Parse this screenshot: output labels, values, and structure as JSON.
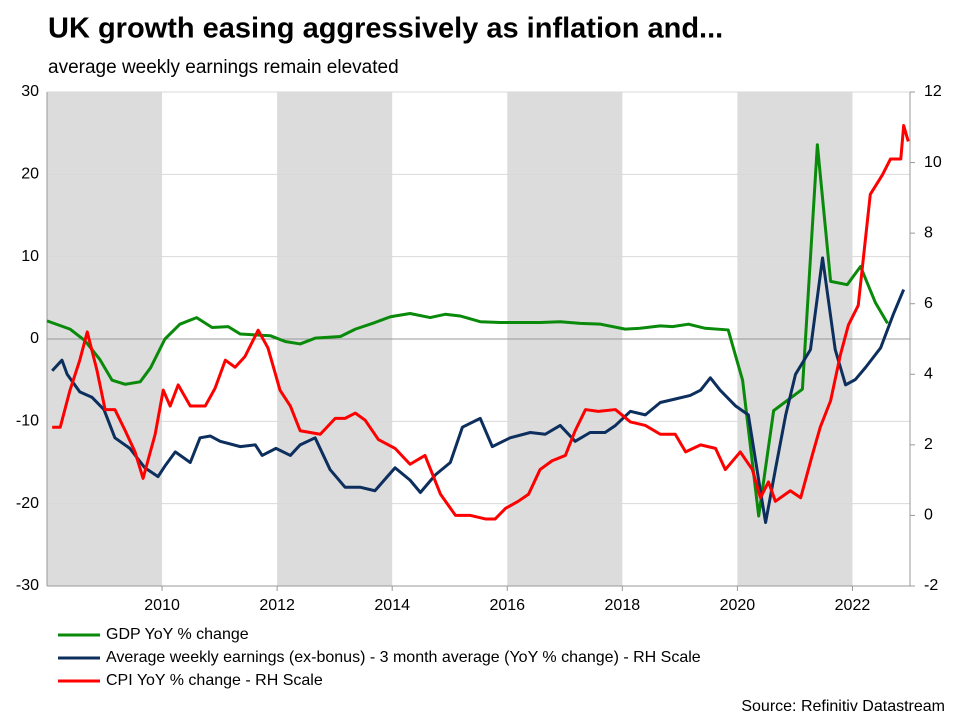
{
  "chart_data": {
    "type": "line",
    "title": "UK growth easing aggressively as inflation and...",
    "subtitle": "average weekly earnings remain elevated",
    "source": "Source: Refinitiv Datastream",
    "xlim": [
      2008,
      2023
    ],
    "xticks": [
      2010,
      2012,
      2014,
      2016,
      2018,
      2020,
      2022
    ],
    "ylim": [
      -30,
      30
    ],
    "yticks": [
      -30,
      -20,
      -10,
      0,
      10,
      20,
      30
    ],
    "y2lim": [
      -2,
      12
    ],
    "y2ticks": [
      -2,
      0,
      2,
      4,
      6,
      8,
      10,
      12
    ],
    "grid": true,
    "shaded_periods": [
      [
        2008,
        2010
      ],
      [
        2012,
        2014
      ],
      [
        2016,
        2018
      ],
      [
        2020,
        2022
      ]
    ],
    "shade_color": "#dcdcdc",
    "series": [
      {
        "name": "GDP YoY % change",
        "color": "#0a8a0a",
        "x": [
          2008.0,
          2008.4,
          2008.66,
          2008.92,
          2009.13,
          2009.36,
          2009.62,
          2009.8,
          2010.05,
          2010.31,
          2010.6,
          2010.87,
          2011.15,
          2011.36,
          2011.88,
          2012.14,
          2012.4,
          2012.66,
          2013.1,
          2013.36,
          2013.7,
          2013.97,
          2014.31,
          2014.66,
          2014.92,
          2015.18,
          2015.53,
          2015.88,
          2016.57,
          2016.92,
          2017.27,
          2017.62,
          2018.05,
          2018.31,
          2018.66,
          2018.87,
          2019.15,
          2019.44,
          2019.84,
          2020.09,
          2020.37,
          2020.63,
          2021.13,
          2021.39,
          2021.62,
          2021.91,
          2022.14,
          2022.4,
          2022.61
        ],
        "values": [
          2.2,
          1.2,
          -0.2,
          -2.5,
          -5,
          -5.5,
          -5.2,
          -3.5,
          0,
          1.8,
          2.6,
          1.4,
          1.5,
          0.6,
          0.4,
          -0.3,
          -0.6,
          0.1,
          0.3,
          1.2,
          2.0,
          2.7,
          3.1,
          2.6,
          3.0,
          2.8,
          2.1,
          2.0,
          2.0,
          2.1,
          1.9,
          1.8,
          1.2,
          1.3,
          1.6,
          1.5,
          1.8,
          1.3,
          1.1,
          -5,
          -21.5,
          -8.7,
          -6.1,
          23.6,
          7.0,
          6.6,
          8.8,
          4.4,
          1.9
        ]
      },
      {
        "name": "Average weekly earnings (ex-bonus) - 3 month average (YoY % change) - RH Scale",
        "color": "#0d2f5e",
        "axis": "y2",
        "x": [
          2008.09,
          2008.26,
          2008.35,
          2008.57,
          2008.78,
          2008.99,
          2009.18,
          2009.44,
          2009.7,
          2009.93,
          2010.05,
          2010.23,
          2010.49,
          2010.66,
          2010.84,
          2011.01,
          2011.36,
          2011.62,
          2011.74,
          2011.98,
          2012.23,
          2012.4,
          2012.66,
          2012.92,
          2013.18,
          2013.44,
          2013.7,
          2014.05,
          2014.31,
          2014.49,
          2014.75,
          2015.01,
          2015.22,
          2015.53,
          2015.74,
          2016.05,
          2016.4,
          2016.66,
          2016.92,
          2017.18,
          2017.44,
          2017.7,
          2017.88,
          2018.14,
          2018.4,
          2018.66,
          2018.92,
          2019.18,
          2019.36,
          2019.53,
          2019.7,
          2019.97,
          2020.19,
          2020.37,
          2020.49,
          2020.66,
          2020.84,
          2021.01,
          2021.27,
          2021.48,
          2021.7,
          2021.88,
          2022.05,
          2022.23,
          2022.49,
          2022.71,
          2022.89
        ],
        "values": [
          4.1,
          4.4,
          4.0,
          3.5,
          3.35,
          3.0,
          2.2,
          1.9,
          1.35,
          1.1,
          1.4,
          1.8,
          1.5,
          2.2,
          2.25,
          2.1,
          1.95,
          2.0,
          1.7,
          1.9,
          1.7,
          2.0,
          2.2,
          1.3,
          0.8,
          0.8,
          0.7,
          1.35,
          1.0,
          0.65,
          1.15,
          1.5,
          2.5,
          2.75,
          1.95,
          2.2,
          2.35,
          2.3,
          2.55,
          2.1,
          2.35,
          2.35,
          2.55,
          2.95,
          2.85,
          3.2,
          3.3,
          3.4,
          3.55,
          3.9,
          3.55,
          3.1,
          2.85,
          1.0,
          -0.2,
          1.3,
          2.85,
          4.0,
          4.7,
          7.3,
          4.7,
          3.7,
          3.85,
          4.2,
          4.75,
          5.7,
          6.4
        ]
      },
      {
        "name": "CPI YoY % change - RH Scale",
        "color": "#ff0000",
        "axis": "y2",
        "x": [
          2008.09,
          2008.23,
          2008.4,
          2008.57,
          2008.7,
          2008.87,
          2009.01,
          2009.18,
          2009.36,
          2009.53,
          2009.67,
          2009.88,
          2010.02,
          2010.14,
          2010.28,
          2010.49,
          2010.75,
          2010.92,
          2011.1,
          2011.27,
          2011.44,
          2011.67,
          2011.84,
          2012.05,
          2012.23,
          2012.4,
          2012.75,
          2013.01,
          2013.18,
          2013.36,
          2013.53,
          2013.76,
          2014.05,
          2014.31,
          2014.57,
          2014.84,
          2015.1,
          2015.36,
          2015.62,
          2015.79,
          2015.97,
          2016.19,
          2016.37,
          2016.57,
          2016.78,
          2017.01,
          2017.18,
          2017.36,
          2017.58,
          2017.88,
          2018.14,
          2018.4,
          2018.66,
          2018.92,
          2019.1,
          2019.36,
          2019.62,
          2019.79,
          2020.05,
          2020.26,
          2020.4,
          2020.54,
          2020.66,
          2020.92,
          2021.1,
          2021.3,
          2021.44,
          2021.62,
          2021.79,
          2021.93,
          2022.1,
          2022.31,
          2022.52,
          2022.66,
          2022.84,
          2022.89,
          2022.97
        ],
        "values": [
          2.5,
          2.5,
          3.55,
          4.4,
          5.2,
          4.1,
          3.0,
          3.0,
          2.4,
          1.8,
          1.05,
          2.3,
          3.55,
          3.1,
          3.7,
          3.1,
          3.1,
          3.6,
          4.4,
          4.2,
          4.5,
          5.25,
          4.75,
          3.55,
          3.1,
          2.4,
          2.3,
          2.75,
          2.75,
          2.9,
          2.7,
          2.15,
          1.9,
          1.45,
          1.7,
          0.6,
          0.0,
          0.0,
          -0.1,
          -0.1,
          0.2,
          0.4,
          0.6,
          1.3,
          1.55,
          1.7,
          2.4,
          3.0,
          2.95,
          3.0,
          2.65,
          2.55,
          2.3,
          2.3,
          1.8,
          2.0,
          1.9,
          1.3,
          1.8,
          1.3,
          0.5,
          0.95,
          0.4,
          0.7,
          0.5,
          1.7,
          2.5,
          3.25,
          4.55,
          5.4,
          5.95,
          9.1,
          9.65,
          10.1,
          10.1,
          11.05,
          10.6
        ]
      }
    ]
  }
}
